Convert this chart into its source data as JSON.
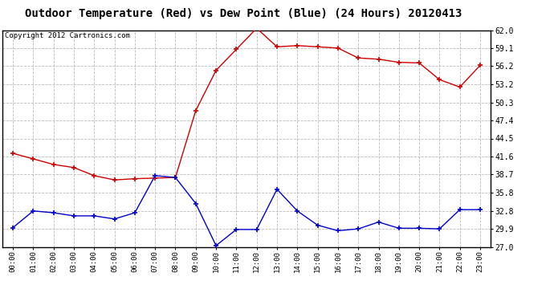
{
  "title": "Outdoor Temperature (Red) vs Dew Point (Blue) (24 Hours) 20120413",
  "copyright": "Copyright 2012 Cartronics.com",
  "x_labels": [
    "00:00",
    "01:00",
    "02:00",
    "03:00",
    "04:00",
    "05:00",
    "06:00",
    "07:00",
    "08:00",
    "09:00",
    "10:00",
    "11:00",
    "12:00",
    "13:00",
    "14:00",
    "15:00",
    "16:00",
    "17:00",
    "18:00",
    "19:00",
    "20:00",
    "21:00",
    "22:00",
    "23:00"
  ],
  "temp_red": [
    42.1,
    41.2,
    40.3,
    39.8,
    38.5,
    37.8,
    38.0,
    38.1,
    38.2,
    49.0,
    55.5,
    58.9,
    62.3,
    59.3,
    59.5,
    59.3,
    59.1,
    57.5,
    57.3,
    56.8,
    56.7,
    54.0,
    52.8,
    56.3
  ],
  "dew_blue": [
    30.1,
    32.8,
    32.5,
    32.0,
    32.0,
    31.5,
    32.5,
    38.5,
    38.2,
    34.0,
    27.2,
    29.8,
    29.8,
    36.3,
    32.8,
    30.5,
    29.6,
    29.9,
    31.0,
    30.0,
    30.0,
    29.9,
    33.0,
    33.0
  ],
  "ylim": [
    27.0,
    62.0
  ],
  "yticks": [
    27.0,
    29.9,
    32.8,
    35.8,
    38.7,
    41.6,
    44.5,
    47.4,
    50.3,
    53.2,
    56.2,
    59.1,
    62.0
  ],
  "red_color": "#cc0000",
  "blue_color": "#0000cc",
  "bg_color": "#ffffff",
  "grid_color": "#bbbbbb",
  "title_fontsize": 10,
  "copyright_fontsize": 6.5
}
